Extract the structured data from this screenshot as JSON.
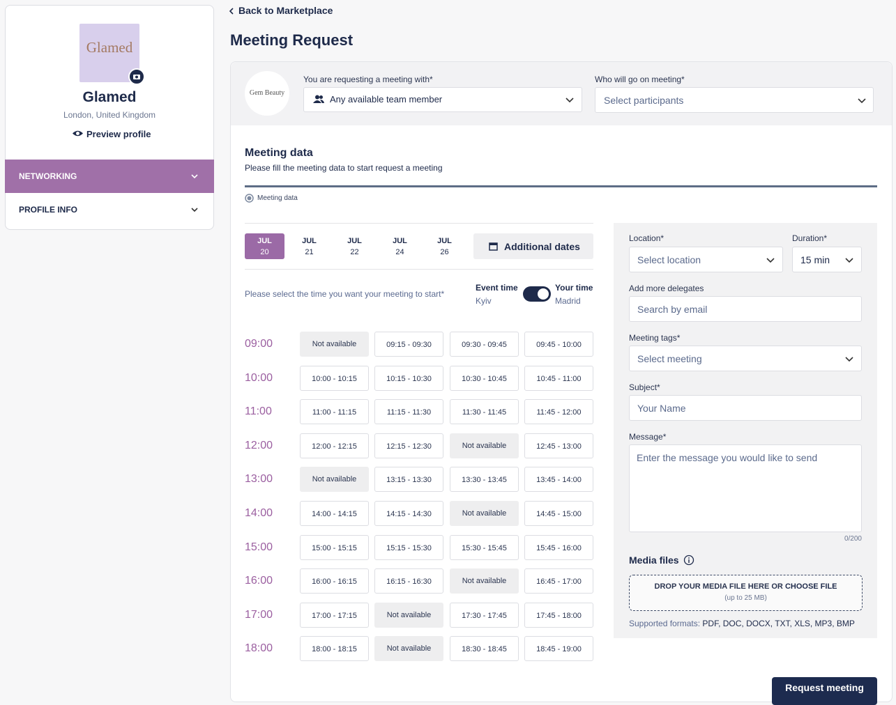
{
  "back_link": "Back to Marketplace",
  "title": "Meeting Request",
  "sidebar": {
    "logo": "Glamed",
    "name": "Glamed",
    "location": "London, United Kingdom",
    "preview": "Preview profile",
    "menu": [
      "NETWORKING",
      "PROFILE INFO"
    ]
  },
  "header": {
    "partner_logo": "Gem Beauty",
    "with_label": "You are requesting a meeting with*",
    "with_value": "Any available team member",
    "who_label": "Who will go on meeting*",
    "who_placeholder": "Select participants"
  },
  "section": {
    "title": "Meeting data",
    "subtitle": "Please fill the meeting data to start request a meeting",
    "step": "Meeting data"
  },
  "dates": [
    {
      "month": "JUL",
      "day": "20"
    },
    {
      "month": "JUL",
      "day": "21"
    },
    {
      "month": "JUL",
      "day": "22"
    },
    {
      "month": "JUL",
      "day": "24"
    },
    {
      "month": "JUL",
      "day": "26"
    }
  ],
  "additional_dates": "Additional dates",
  "time_prompt": "Please select the time you want your meeting to start*",
  "event_time": {
    "label": "Event time",
    "zone": "Kyiv"
  },
  "your_time": {
    "label": "Your time",
    "zone": "Madrid"
  },
  "slots": [
    {
      "hour": "09:00",
      "times": [
        "Not available",
        "09:15 - 09:30",
        "09:30 - 09:45",
        "09:45 - 10:00"
      ]
    },
    {
      "hour": "10:00",
      "times": [
        "10:00 - 10:15",
        "10:15 - 10:30",
        "10:30 - 10:45",
        "10:45 - 11:00"
      ]
    },
    {
      "hour": "11:00",
      "times": [
        "11:00 - 11:15",
        "11:15 - 11:30",
        "11:30 - 11:45",
        "11:45 - 12:00"
      ]
    },
    {
      "hour": "12:00",
      "times": [
        "12:00 - 12:15",
        "12:15 - 12:30",
        "Not available",
        "12:45 - 13:00"
      ]
    },
    {
      "hour": "13:00",
      "times": [
        "Not available",
        "13:15 - 13:30",
        "13:30 - 13:45",
        "13:45 - 14:00"
      ]
    },
    {
      "hour": "14:00",
      "times": [
        "14:00 - 14:15",
        "14:15 - 14:30",
        "Not available",
        "14:45 - 15:00"
      ]
    },
    {
      "hour": "15:00",
      "times": [
        "15:00 - 15:15",
        "15:15 - 15:30",
        "15:30 - 15:45",
        "15:45 - 16:00"
      ]
    },
    {
      "hour": "16:00",
      "times": [
        "16:00 - 16:15",
        "16:15 - 16:30",
        "Not available",
        "16:45 - 17:00"
      ]
    },
    {
      "hour": "17:00",
      "times": [
        "17:00 - 17:15",
        "Not available",
        "17:30 - 17:45",
        "17:45 - 18:00"
      ]
    },
    {
      "hour": "18:00",
      "times": [
        "18:00 - 18:15",
        "Not available",
        "18:30 - 18:45",
        "18:45 - 19:00"
      ]
    }
  ],
  "form": {
    "location_label": "Location*",
    "location_placeholder": "Select location",
    "duration_label": "Duration*",
    "duration_value": "15 min",
    "delegates_label": "Add more delegates",
    "delegates_placeholder": "Search by email",
    "tags_label": "Meeting tags*",
    "tags_placeholder": "Select meeting",
    "subject_label": "Subject*",
    "subject_placeholder": "Your Name",
    "message_label": "Message*",
    "message_placeholder": "Enter the message you would like to send",
    "counter": "0/200",
    "media_label": "Media files",
    "drop_text": "DROP YOUR MEDIA FILE HERE OR",
    "drop_link": "CHOOSE FILE",
    "drop_limit": "(up to 25 MB)",
    "formats_label": "Supported formats:",
    "formats": "PDF, DOC, DOCX, TXT, XLS, MP3, BMP"
  },
  "button": "Request meeting"
}
